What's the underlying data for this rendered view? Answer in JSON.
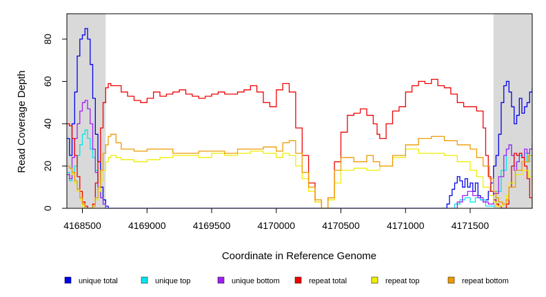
{
  "chart_data": {
    "type": "line",
    "xlabel": "Coordinate in Reference Genome",
    "ylabel": "Read Coverage Depth",
    "xlim": [
      4168380,
      4171980
    ],
    "ylim": [
      0,
      92
    ],
    "x_ticks": [
      4168500,
      4169000,
      4169500,
      4170000,
      4170500,
      4171000,
      4171500
    ],
    "x_tick_labels": [
      "4168500",
      "4169000",
      "4169500",
      "4170000",
      "4170500",
      "4171000",
      "4171500"
    ],
    "y_ticks": [
      0,
      20,
      40,
      60,
      80
    ],
    "y_tick_labels": [
      "0",
      "20",
      "40",
      "60",
      "80"
    ],
    "shaded_regions": [
      [
        4168380,
        4168680
      ],
      [
        4171680,
        4171980
      ]
    ],
    "shade_color": "#d9d9d9",
    "legend_position": "bottom",
    "series": [
      {
        "name": "unique total",
        "color": "#0000ee",
        "x": [
          4168380,
          4168400,
          4168420,
          4168440,
          4168460,
          4168480,
          4168500,
          4168520,
          4168540,
          4168560,
          4168580,
          4168600,
          4168620,
          4168640,
          4168660,
          4168680,
          4168700,
          4168720,
          4171300,
          4171320,
          4171340,
          4171360,
          4171380,
          4171400,
          4171420,
          4171440,
          4171460,
          4171480,
          4171500,
          4171520,
          4171540,
          4171560,
          4171580,
          4171600,
          4171620,
          4171640,
          4171660,
          4171680,
          4171700,
          4171720,
          4171740,
          4171760,
          4171780,
          4171800,
          4171820,
          4171840,
          4171860,
          4171880,
          4171900,
          4171920,
          4171940,
          4171960,
          4171980
        ],
        "y": [
          33,
          25,
          40,
          55,
          72,
          80,
          82,
          85,
          80,
          68,
          52,
          35,
          22,
          10,
          4,
          1,
          0,
          0,
          0,
          2,
          6,
          9,
          12,
          15,
          13,
          10,
          14,
          10,
          12,
          8,
          12,
          6,
          4,
          3,
          4,
          8,
          12,
          20,
          25,
          35,
          50,
          58,
          60,
          55,
          48,
          40,
          44,
          52,
          45,
          48,
          50,
          55,
          57
        ]
      },
      {
        "name": "unique top",
        "color": "#00e5ee",
        "x": [
          4168380,
          4168400,
          4168420,
          4168440,
          4168460,
          4168480,
          4168500,
          4168520,
          4168540,
          4168560,
          4168580,
          4168600,
          4168620,
          4168640,
          4168660,
          4168680,
          4168700,
          4168720,
          4171340,
          4171380,
          4171420,
          4171460,
          4171500,
          4171540,
          4171580,
          4171620,
          4171660,
          4171700,
          4171740,
          4171780,
          4171800,
          4171820,
          4171840,
          4171860,
          4171880,
          4171900,
          4171920,
          4171940,
          4171960,
          4171980
        ],
        "y": [
          17,
          13,
          16,
          20,
          25,
          30,
          35,
          37,
          33,
          28,
          24,
          18,
          10,
          5,
          2,
          0,
          0,
          0,
          0,
          2,
          4,
          5,
          3,
          5,
          4,
          1,
          1,
          8,
          18,
          28,
          30,
          25,
          20,
          22,
          25,
          24,
          26,
          22,
          28,
          30
        ]
      },
      {
        "name": "unique bottom",
        "color": "#a020f0",
        "x": [
          4168380,
          4168400,
          4168420,
          4168440,
          4168460,
          4168480,
          4168500,
          4168520,
          4168540,
          4168560,
          4168580,
          4168600,
          4168620,
          4168640,
          4168660,
          4168680,
          4168700,
          4168720,
          4171360,
          4171400,
          4171440,
          4171480,
          4171520,
          4171560,
          4171600,
          4171640,
          4171680,
          4171720,
          4171760,
          4171780,
          4171800,
          4171820,
          4171840,
          4171860,
          4171880,
          4171900,
          4171920,
          4171940,
          4171960,
          4171980
        ],
        "y": [
          16,
          14,
          24,
          33,
          40,
          46,
          50,
          51,
          47,
          40,
          28,
          17,
          10,
          5,
          2,
          0,
          0,
          0,
          0,
          3,
          6,
          8,
          6,
          5,
          3,
          2,
          7,
          15,
          25,
          28,
          30,
          25,
          18,
          22,
          26,
          24,
          28,
          26,
          28,
          31
        ]
      },
      {
        "name": "repeat total",
        "color": "#ee0000",
        "x": [
          4168380,
          4168400,
          4168420,
          4168440,
          4168460,
          4168480,
          4168500,
          4168520,
          4168540,
          4168560,
          4168580,
          4168600,
          4168620,
          4168640,
          4168660,
          4168680,
          4168700,
          4168720,
          4168760,
          4168800,
          4168850,
          4168900,
          4168950,
          4169000,
          4169050,
          4169100,
          4169150,
          4169200,
          4169250,
          4169300,
          4169350,
          4169400,
          4169450,
          4169500,
          4169550,
          4169600,
          4169650,
          4169700,
          4169750,
          4169800,
          4169850,
          4169900,
          4169950,
          4170000,
          4170050,
          4170100,
          4170150,
          4170200,
          4170250,
          4170300,
          4170350,
          4170370,
          4170400,
          4170450,
          4170500,
          4170550,
          4170600,
          4170650,
          4170700,
          4170750,
          4170780,
          4170800,
          4170850,
          4170900,
          4170950,
          4171000,
          4171050,
          4171100,
          4171150,
          4171200,
          4171250,
          4171300,
          4171350,
          4171400,
          4171450,
          4171500,
          4171550,
          4171600,
          4171620,
          4171640,
          4171660,
          4171680,
          4171700,
          4171720,
          4171740,
          4171760,
          4171780,
          4171800,
          4171820,
          4171840,
          4171860,
          4171880,
          4171900,
          4171920,
          4171940,
          4171960,
          4171980
        ],
        "y": [
          40,
          39,
          33,
          25,
          15,
          8,
          3,
          1,
          0,
          0,
          2,
          12,
          22,
          38,
          50,
          57,
          59,
          58,
          58,
          55,
          53,
          51,
          50,
          52,
          55,
          53,
          54,
          55,
          56,
          54,
          53,
          52,
          53,
          54,
          55,
          54,
          54,
          55,
          56,
          58,
          55,
          50,
          48,
          56,
          59,
          55,
          38,
          25,
          12,
          3,
          0,
          0,
          5,
          22,
          36,
          44,
          45,
          47,
          44,
          40,
          35,
          33,
          40,
          46,
          48,
          55,
          58,
          60,
          59,
          61,
          58,
          57,
          54,
          50,
          48,
          48,
          46,
          38,
          25,
          15,
          8,
          4,
          2,
          1,
          0,
          0,
          2,
          10,
          20,
          26,
          25,
          26,
          24,
          20,
          14,
          5,
          0
        ]
      },
      {
        "name": "repeat top",
        "color": "#eeee00",
        "x": [
          4168380,
          4168400,
          4168420,
          4168440,
          4168460,
          4168480,
          4168500,
          4168520,
          4168540,
          4168560,
          4168580,
          4168600,
          4168620,
          4168640,
          4168660,
          4168680,
          4168700,
          4168720,
          4168760,
          4168800,
          4168900,
          4169000,
          4169100,
          4169200,
          4169300,
          4169400,
          4169500,
          4169600,
          4169700,
          4169800,
          4169900,
          4170000,
          4170050,
          4170100,
          4170150,
          4170200,
          4170250,
          4170300,
          4170350,
          4170370,
          4170400,
          4170450,
          4170500,
          4170600,
          4170700,
          4170800,
          4170900,
          4171000,
          4171100,
          4171200,
          4171300,
          4171400,
          4171500,
          4171550,
          4171600,
          4171650,
          4171680,
          4171700,
          4171720,
          4171750,
          4171780,
          4171800,
          4171850,
          4171900,
          4171950,
          4171980
        ],
        "y": [
          20,
          19,
          16,
          12,
          8,
          4,
          1,
          0,
          0,
          0,
          1,
          4,
          8,
          13,
          18,
          22,
          24,
          25,
          24,
          23,
          22,
          23,
          24,
          25,
          25,
          24,
          26,
          25,
          26,
          27,
          26,
          24,
          26,
          25,
          20,
          14,
          8,
          3,
          0,
          0,
          4,
          12,
          18,
          19,
          18,
          20,
          24,
          28,
          26,
          26,
          25,
          22,
          18,
          15,
          10,
          6,
          3,
          1,
          1,
          2,
          6,
          12,
          16,
          18,
          15,
          1
        ]
      },
      {
        "name": "repeat bottom",
        "color": "#ee9a00",
        "x": [
          4168380,
          4168400,
          4168420,
          4168440,
          4168460,
          4168480,
          4168500,
          4168520,
          4168540,
          4168560,
          4168580,
          4168600,
          4168620,
          4168640,
          4168660,
          4168680,
          4168700,
          4168720,
          4168760,
          4168800,
          4168900,
          4169000,
          4169100,
          4169200,
          4169300,
          4169400,
          4169500,
          4169600,
          4169700,
          4169800,
          4169900,
          4170000,
          4170050,
          4170100,
          4170150,
          4170200,
          4170250,
          4170300,
          4170350,
          4170370,
          4170400,
          4170450,
          4170500,
          4170600,
          4170700,
          4170750,
          4170800,
          4170900,
          4171000,
          4171100,
          4171200,
          4171300,
          4171400,
          4171500,
          4171550,
          4171600,
          4171650,
          4171680,
          4171700,
          4171720,
          4171750,
          4171780,
          4171800,
          4171850,
          4171900,
          4171950,
          4171980
        ],
        "y": [
          20,
          19,
          17,
          13,
          9,
          5,
          2,
          0,
          0,
          0,
          1,
          5,
          10,
          18,
          26,
          30,
          34,
          35,
          31,
          28,
          27,
          28,
          28,
          26,
          26,
          27,
          27,
          26,
          28,
          28,
          29,
          27,
          31,
          32,
          26,
          17,
          10,
          4,
          0,
          0,
          5,
          18,
          24,
          22,
          25,
          22,
          20,
          25,
          30,
          33,
          34,
          32,
          30,
          28,
          24,
          20,
          14,
          8,
          5,
          3,
          2,
          4,
          10,
          18,
          22,
          25,
          10
        ]
      }
    ]
  }
}
